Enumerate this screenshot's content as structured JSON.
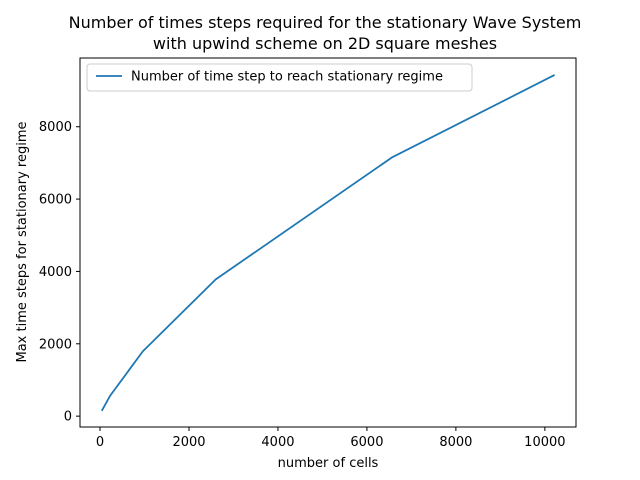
{
  "chart_data": {
    "type": "line",
    "title": [
      "Number of times steps required for the stationary Wave System",
      "with upwind scheme on 2D square meshes"
    ],
    "xlabel": "number of cells",
    "ylabel": "Max time steps for stationary regime",
    "xlim": [
      -450,
      10700
    ],
    "ylim": [
      -300,
      9900
    ],
    "xticks": [
      0,
      2000,
      4000,
      6000,
      8000,
      10000
    ],
    "yticks": [
      0,
      2000,
      4000,
      6000,
      8000
    ],
    "legend_position": "top-left",
    "series": [
      {
        "name": "Number of time step to reach stationary regime",
        "color": "#1f77b4",
        "x": [
          49,
          225,
          961,
          2601,
          6561,
          10201
        ],
        "y": [
          170,
          560,
          1790,
          3780,
          7150,
          9420
        ]
      }
    ]
  }
}
